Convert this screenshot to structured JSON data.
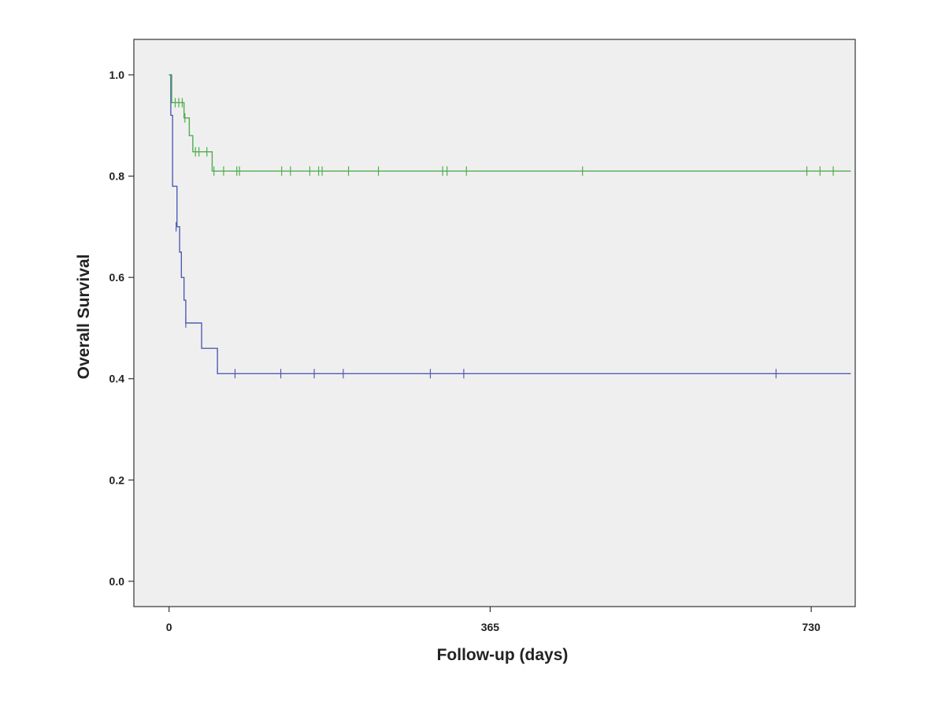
{
  "chart_data": {
    "type": "line",
    "title": "",
    "xlabel": "Follow-up (days)",
    "ylabel": "Overall Survival",
    "xlim": [
      -40,
      780
    ],
    "ylim": [
      -0.05,
      1.07
    ],
    "x_ticks": [
      "0",
      "365",
      "730"
    ],
    "y_ticks": [
      "0.0",
      "0.2",
      "0.4",
      "0.6",
      "0.8",
      "1.0"
    ],
    "grid": false,
    "legend": "none",
    "plot_background": "#f0eff0",
    "series": [
      {
        "color": "#4f5db3",
        "steps": [
          [
            0,
            1.0
          ],
          [
            2,
            0.92
          ],
          [
            4,
            0.78
          ],
          [
            9,
            0.7
          ],
          [
            12,
            0.65
          ],
          [
            14,
            0.6
          ],
          [
            17,
            0.555
          ],
          [
            19,
            0.51
          ],
          [
            37,
            0.46
          ],
          [
            55,
            0.41
          ],
          [
            775,
            0.41
          ]
        ],
        "censored": [
          [
            8,
            0.7
          ],
          [
            19,
            0.51
          ],
          [
            75,
            0.41
          ],
          [
            127,
            0.41
          ],
          [
            165,
            0.41
          ],
          [
            198,
            0.41
          ],
          [
            297,
            0.41
          ],
          [
            335,
            0.41
          ],
          [
            690,
            0.41
          ]
        ]
      },
      {
        "color": "#4fae4f",
        "steps": [
          [
            0,
            1.0
          ],
          [
            3,
            0.945
          ],
          [
            17,
            0.915
          ],
          [
            23,
            0.88
          ],
          [
            27,
            0.848
          ],
          [
            49,
            0.81
          ],
          [
            775,
            0.81
          ]
        ],
        "censored": [
          [
            7,
            0.945
          ],
          [
            11,
            0.945
          ],
          [
            15,
            0.945
          ],
          [
            18,
            0.915
          ],
          [
            30,
            0.848
          ],
          [
            34,
            0.848
          ],
          [
            43,
            0.848
          ],
          [
            51,
            0.81
          ],
          [
            62,
            0.81
          ],
          [
            77,
            0.81
          ],
          [
            80,
            0.81
          ],
          [
            128,
            0.81
          ],
          [
            138,
            0.81
          ],
          [
            160,
            0.81
          ],
          [
            170,
            0.81
          ],
          [
            174,
            0.81
          ],
          [
            204,
            0.81
          ],
          [
            238,
            0.81
          ],
          [
            311,
            0.81
          ],
          [
            316,
            0.81
          ],
          [
            338,
            0.81
          ],
          [
            470,
            0.81
          ],
          [
            725,
            0.81
          ],
          [
            740,
            0.81
          ],
          [
            755,
            0.81
          ]
        ]
      }
    ]
  }
}
